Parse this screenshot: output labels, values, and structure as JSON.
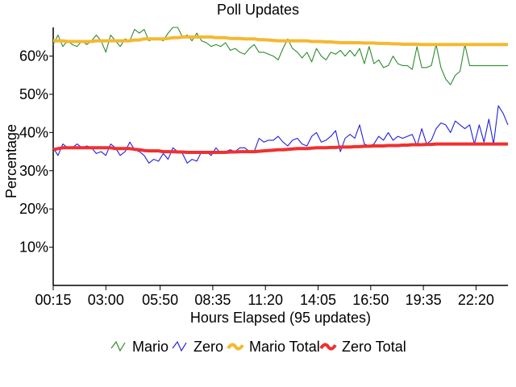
{
  "chart_data": {
    "type": "line",
    "title": "Poll Updates",
    "xlabel": "Hours Elapsed (95 updates)",
    "ylabel": "Percentage",
    "x_tick_labels": [
      "00:15",
      "03:00",
      "05:50",
      "08:35",
      "11:20",
      "14:05",
      "16:50",
      "19:35",
      "22:20"
    ],
    "y_ticks": [
      10,
      20,
      30,
      40,
      50,
      60
    ],
    "y_tick_labels": [
      "10%",
      "20%",
      "30%",
      "40%",
      "50%",
      "60%"
    ],
    "ylim": [
      0,
      67.5
    ],
    "x_range_minutes": [
      15,
      1440
    ],
    "grid": false,
    "legend_position": "bottom",
    "series": [
      {
        "name": "Mario",
        "color": "#2e8b2e",
        "style": "line",
        "x": [
          15,
          30,
          45,
          60,
          75,
          90,
          105,
          120,
          135,
          150,
          165,
          180,
          195,
          210,
          225,
          240,
          255,
          270,
          285,
          300,
          315,
          330,
          345,
          360,
          375,
          390,
          405,
          420,
          435,
          450,
          465,
          480,
          495,
          510,
          525,
          540,
          555,
          570,
          585,
          600,
          615,
          630,
          645,
          660,
          675,
          690,
          705,
          720,
          735,
          750,
          765,
          780,
          795,
          810,
          825,
          840,
          855,
          870,
          885,
          900,
          915,
          930,
          945,
          960,
          975,
          990,
          1005,
          1020,
          1035,
          1050,
          1065,
          1080,
          1095,
          1110,
          1125,
          1140,
          1155,
          1170,
          1185,
          1200,
          1215,
          1230,
          1245,
          1260,
          1275,
          1290,
          1305,
          1320,
          1335,
          1350,
          1365,
          1380,
          1395,
          1410,
          1425,
          1440
        ],
        "values": [
          63,
          65.5,
          62.5,
          64,
          63,
          62.5,
          64,
          63,
          64,
          65.5,
          64,
          61,
          65.5,
          64,
          62.5,
          64.5,
          64,
          67,
          66,
          67,
          64,
          64.5,
          64.5,
          64,
          66,
          67.5,
          67.5,
          65,
          65.5,
          64,
          66,
          64,
          63.5,
          62.5,
          63,
          62.5,
          63.5,
          61.5,
          62,
          61,
          60.5,
          62,
          63,
          61,
          61,
          60.5,
          60,
          59,
          62,
          64.5,
          62,
          61,
          59.5,
          61,
          58.5,
          62,
          60,
          59,
          61,
          60.5,
          61.5,
          60,
          61.5,
          60,
          62,
          58,
          62.5,
          58,
          59,
          57,
          57.5,
          60,
          58,
          57.5,
          57.5,
          56.5,
          62.5,
          57,
          57,
          57.5,
          63,
          57,
          54,
          52.5,
          55,
          56,
          63,
          57.5,
          57.5,
          57.5,
          57.5,
          57.5,
          57.5,
          57.5,
          57.5,
          57.5
        ]
      },
      {
        "name": "Zero",
        "color": "#2020e0",
        "style": "line",
        "x": [
          15,
          30,
          45,
          60,
          75,
          90,
          105,
          120,
          135,
          150,
          165,
          180,
          195,
          210,
          225,
          240,
          255,
          270,
          285,
          300,
          315,
          330,
          345,
          360,
          375,
          390,
          405,
          420,
          435,
          450,
          465,
          480,
          495,
          510,
          525,
          540,
          555,
          570,
          585,
          600,
          615,
          630,
          645,
          660,
          675,
          690,
          705,
          720,
          735,
          750,
          765,
          780,
          795,
          810,
          825,
          840,
          855,
          870,
          885,
          900,
          915,
          930,
          945,
          960,
          975,
          990,
          1005,
          1020,
          1035,
          1050,
          1065,
          1080,
          1095,
          1110,
          1125,
          1140,
          1155,
          1170,
          1185,
          1200,
          1215,
          1230,
          1245,
          1260,
          1275,
          1290,
          1305,
          1320,
          1335,
          1350,
          1365,
          1380,
          1395,
          1410,
          1425,
          1440
        ],
        "values": [
          36,
          34,
          37,
          36,
          36,
          37,
          36,
          36.5,
          36,
          34.5,
          35,
          34,
          37,
          36,
          34,
          35,
          37.5,
          35.5,
          35,
          34,
          32,
          33,
          32.5,
          34.5,
          33,
          36,
          35,
          34.5,
          32,
          33,
          32.5,
          35,
          35,
          34,
          36,
          34.5,
          35,
          35.5,
          35,
          36,
          36,
          35,
          35,
          38.5,
          37.5,
          38,
          38,
          39,
          37.5,
          36.5,
          38,
          38.5,
          37,
          36.5,
          39,
          40,
          37.5,
          38,
          39,
          40.5,
          35,
          38.5,
          39.5,
          38.5,
          42,
          37,
          36.5,
          37,
          39,
          38,
          40,
          38,
          39,
          38.5,
          39,
          39.5,
          36.5,
          41,
          37,
          38,
          41,
          42.5,
          42,
          40,
          43,
          42,
          41,
          42,
          37,
          42,
          37.5,
          43.5,
          37,
          47,
          45,
          42
        ]
      },
      {
        "name": "Mario Total",
        "color": "#f5b830",
        "style": "thick",
        "x": [
          15,
          30,
          45,
          60,
          75,
          90,
          105,
          120,
          135,
          150,
          165,
          180,
          195,
          210,
          225,
          240,
          255,
          270,
          285,
          300,
          315,
          330,
          345,
          360,
          375,
          390,
          405,
          420,
          435,
          450,
          465,
          480,
          495,
          510,
          525,
          540,
          555,
          570,
          585,
          600,
          615,
          630,
          645,
          660,
          675,
          690,
          705,
          720,
          735,
          750,
          765,
          780,
          795,
          810,
          825,
          840,
          855,
          870,
          885,
          900,
          915,
          930,
          945,
          960,
          975,
          990,
          1005,
          1020,
          1035,
          1050,
          1065,
          1080,
          1095,
          1110,
          1125,
          1140,
          1155,
          1170,
          1185,
          1200,
          1215,
          1230,
          1245,
          1260,
          1275,
          1290,
          1305,
          1320,
          1335,
          1350,
          1365,
          1380,
          1395,
          1410,
          1425,
          1440
        ],
        "values": [
          64,
          64,
          64,
          63.8,
          63.8,
          63.8,
          63.8,
          63.8,
          63.8,
          64,
          64,
          64,
          64,
          64,
          64,
          64,
          64,
          64.2,
          64.2,
          64.5,
          64.5,
          64.5,
          64.5,
          64.5,
          64.6,
          64.8,
          64.8,
          65,
          65,
          65,
          65,
          65,
          65,
          65,
          64.8,
          64.8,
          64.8,
          64.6,
          64.6,
          64.6,
          64.5,
          64.5,
          64.5,
          64.3,
          64.3,
          64.2,
          64.1,
          64,
          64,
          64,
          64,
          64,
          64,
          64,
          63.8,
          63.8,
          63.8,
          63.7,
          63.7,
          63.6,
          63.5,
          63.5,
          63.5,
          63.5,
          63.5,
          63.4,
          63.4,
          63.4,
          63.3,
          63.3,
          63.3,
          63.2,
          63.2,
          63.1,
          63.1,
          63.1,
          63.1,
          63,
          63,
          63,
          63,
          63,
          63,
          63,
          63,
          63,
          63,
          63,
          63,
          63,
          63,
          63,
          63,
          63,
          63,
          63
        ]
      },
      {
        "name": "Zero Total",
        "color": "#f03030",
        "style": "thick",
        "x": [
          15,
          30,
          45,
          60,
          75,
          90,
          105,
          120,
          135,
          150,
          165,
          180,
          195,
          210,
          225,
          240,
          255,
          270,
          285,
          300,
          315,
          330,
          345,
          360,
          375,
          390,
          405,
          420,
          435,
          450,
          465,
          480,
          495,
          510,
          525,
          540,
          555,
          570,
          585,
          600,
          615,
          630,
          645,
          660,
          675,
          690,
          705,
          720,
          735,
          750,
          765,
          780,
          795,
          810,
          825,
          840,
          855,
          870,
          885,
          900,
          915,
          930,
          945,
          960,
          975,
          990,
          1005,
          1020,
          1035,
          1050,
          1065,
          1080,
          1095,
          1110,
          1125,
          1140,
          1155,
          1170,
          1185,
          1200,
          1215,
          1230,
          1245,
          1260,
          1275,
          1290,
          1305,
          1320,
          1335,
          1350,
          1365,
          1380,
          1395,
          1410,
          1425,
          1440
        ],
        "values": [
          35.5,
          35.8,
          36,
          36,
          36,
          36,
          36,
          36,
          36,
          36,
          36,
          36,
          36,
          35.8,
          35.8,
          35.8,
          35.8,
          35.6,
          35.5,
          35.3,
          35.2,
          35.2,
          35.2,
          35,
          35,
          35,
          34.9,
          34.9,
          34.8,
          34.8,
          34.8,
          34.8,
          34.8,
          34.8,
          34.8,
          34.8,
          34.8,
          34.9,
          34.9,
          35,
          35,
          35,
          35,
          35.1,
          35.2,
          35.3,
          35.4,
          35.5,
          35.5,
          35.6,
          35.7,
          35.8,
          35.8,
          35.8,
          35.9,
          36,
          36,
          36,
          36.1,
          36.1,
          36.2,
          36.2,
          36.2,
          36.3,
          36.3,
          36.4,
          36.4,
          36.5,
          36.5,
          36.5,
          36.6,
          36.6,
          36.6,
          36.7,
          36.7,
          36.8,
          36.8,
          36.8,
          36.9,
          36.9,
          37,
          37,
          37,
          37,
          37,
          37,
          37,
          37,
          37,
          37,
          37,
          37,
          37,
          37,
          37,
          37
        ]
      }
    ]
  }
}
